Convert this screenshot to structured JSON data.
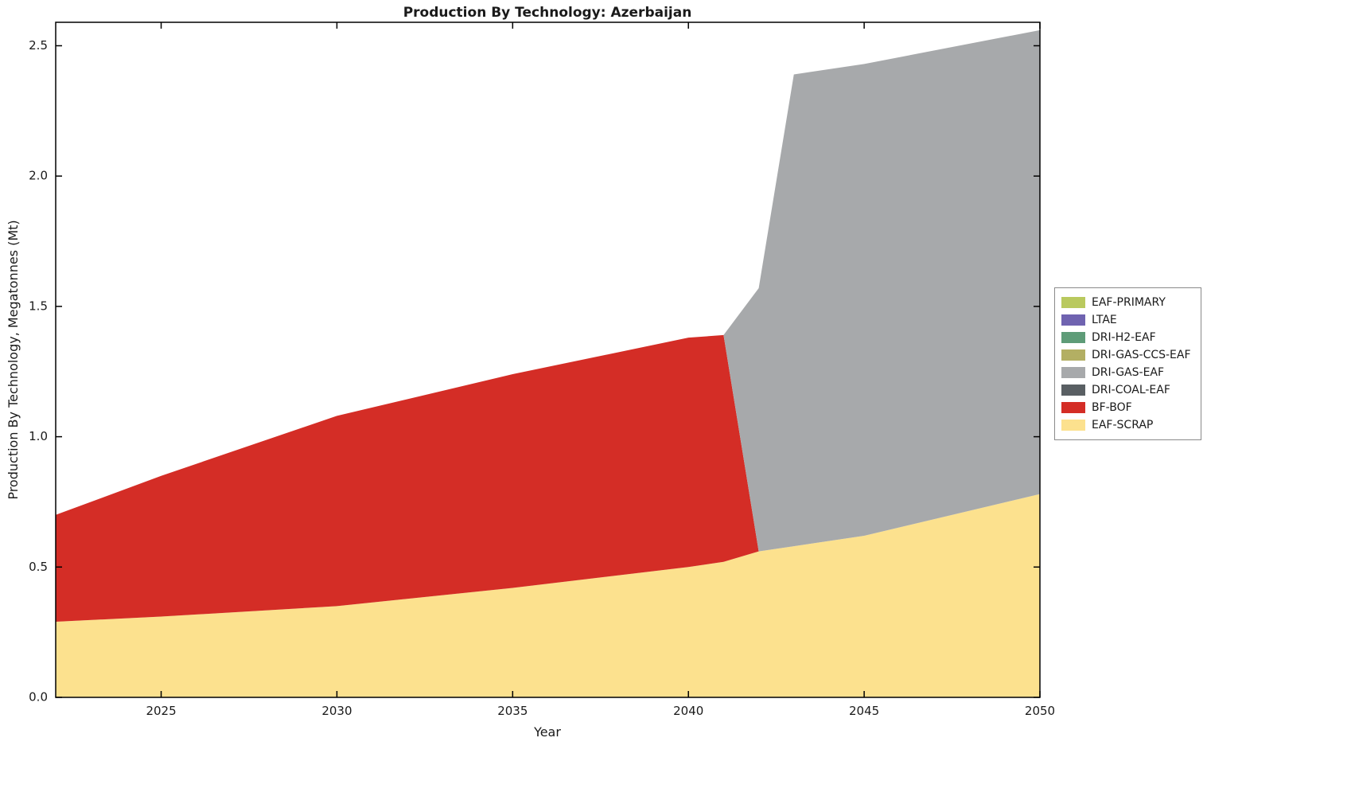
{
  "chart_data": {
    "type": "area",
    "stacked": true,
    "title": "Production By Technology: Azerbaijan",
    "xlabel": "Year",
    "ylabel": "Production By Technology, Megatonnes (Mt)",
    "xlim": [
      2022,
      2050
    ],
    "ylim": [
      0,
      2.59
    ],
    "xticks": [
      2025,
      2030,
      2035,
      2040,
      2045,
      2050
    ],
    "yticks": [
      0.0,
      0.5,
      1.0,
      1.5,
      2.0,
      2.5
    ],
    "ytick_labels": [
      "0.0",
      "0.5",
      "1.0",
      "1.5",
      "2.0",
      "2.5"
    ],
    "grid": false,
    "legend_position": "right-outside",
    "x": [
      2022,
      2025,
      2030,
      2035,
      2040,
      2041,
      2042,
      2043,
      2045,
      2050
    ],
    "series": [
      {
        "name": "EAF-SCRAP",
        "color": "#fce18e",
        "values": [
          0.29,
          0.31,
          0.35,
          0.42,
          0.5,
          0.52,
          0.56,
          0.58,
          0.62,
          0.78
        ]
      },
      {
        "name": "BF-BOF",
        "color": "#d42d26",
        "values": [
          0.41,
          0.54,
          0.73,
          0.82,
          0.88,
          0.87,
          0.0,
          0.0,
          0.0,
          0.0
        ]
      },
      {
        "name": "DRI-COAL-EAF",
        "color": "#595f63",
        "values": [
          0,
          0,
          0,
          0,
          0,
          0,
          0,
          0,
          0,
          0
        ]
      },
      {
        "name": "DRI-GAS-EAF",
        "color": "#a7a9ab",
        "values": [
          0.0,
          0.0,
          0.0,
          0.0,
          0.0,
          0.0,
          1.01,
          1.81,
          1.81,
          1.78
        ]
      },
      {
        "name": "DRI-GAS-CCS-EAF",
        "color": "#b3af63",
        "values": [
          0,
          0,
          0,
          0,
          0,
          0,
          0,
          0,
          0,
          0
        ]
      },
      {
        "name": "DRI-H2-EAF",
        "color": "#5e9c78",
        "values": [
          0,
          0,
          0,
          0,
          0,
          0,
          0,
          0,
          0,
          0
        ]
      },
      {
        "name": "LTAE",
        "color": "#6f63b0",
        "values": [
          0,
          0,
          0,
          0,
          0,
          0,
          0,
          0,
          0,
          0
        ]
      },
      {
        "name": "EAF-PRIMARY",
        "color": "#b9c95e",
        "values": [
          0,
          0,
          0,
          0,
          0,
          0,
          0,
          0,
          0,
          0
        ]
      }
    ],
    "legend": [
      {
        "label": "EAF-PRIMARY",
        "color": "#b9c95e"
      },
      {
        "label": "LTAE",
        "color": "#6f63b0"
      },
      {
        "label": "DRI-H2-EAF",
        "color": "#5e9c78"
      },
      {
        "label": "DRI-GAS-CCS-EAF",
        "color": "#b3af63"
      },
      {
        "label": "DRI-GAS-EAF",
        "color": "#a7a9ab"
      },
      {
        "label": "DRI-COAL-EAF",
        "color": "#595f63"
      },
      {
        "label": "BF-BOF",
        "color": "#d42d26"
      },
      {
        "label": "EAF-SCRAP",
        "color": "#fce18e"
      }
    ]
  }
}
